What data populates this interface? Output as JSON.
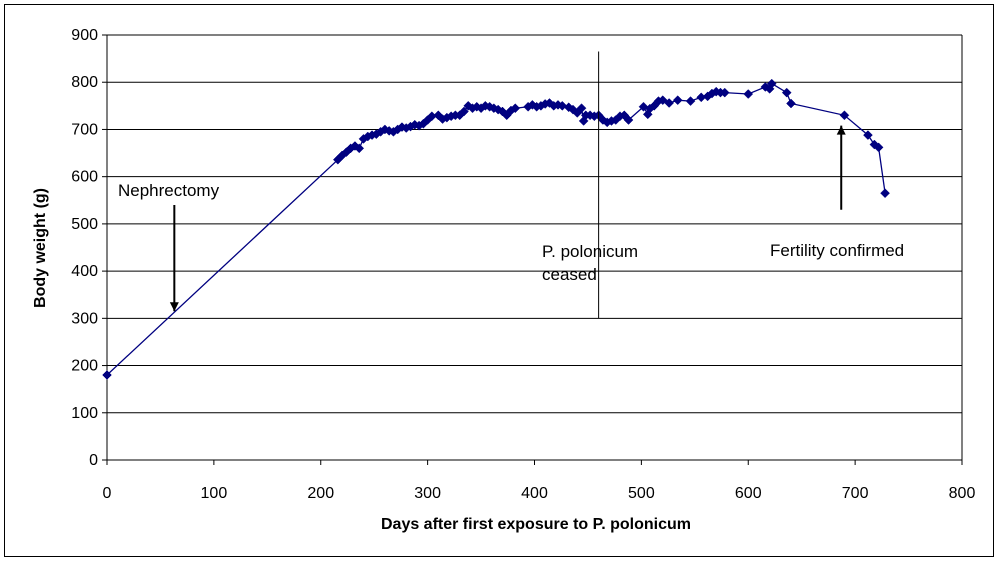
{
  "chart_data": {
    "type": "scatter",
    "title": "",
    "xlabel": "Days after first exposure to P. polonicum",
    "ylabel": "Body weight (g)",
    "xlim": [
      0,
      800
    ],
    "ylim": [
      0,
      900
    ],
    "xticks": [
      0,
      100,
      200,
      300,
      400,
      500,
      600,
      700,
      800
    ],
    "yticks": [
      0,
      100,
      200,
      300,
      400,
      500,
      600,
      700,
      800,
      900
    ],
    "grid": "horizontal",
    "legend": "none",
    "colors": {
      "series": "#000080",
      "grid": "#000000",
      "axis": "#000000"
    },
    "series": [
      {
        "marker": "diamond",
        "connected": true,
        "x": [
          0,
          216,
          220,
          224,
          228,
          232,
          236,
          240,
          244,
          248,
          252,
          256,
          260,
          264,
          268,
          272,
          276,
          280,
          284,
          288,
          292,
          296,
          300,
          304,
          310,
          314,
          318,
          322,
          326,
          330,
          334,
          338,
          342,
          346,
          350,
          354,
          358,
          362,
          366,
          370,
          374,
          378,
          382,
          394,
          398,
          402,
          406,
          410,
          414,
          418,
          422,
          426,
          432,
          436,
          440,
          444,
          446,
          448,
          452,
          456,
          460,
          464,
          468,
          472,
          476,
          480,
          484,
          488,
          502,
          506,
          508,
          512,
          516,
          520,
          526,
          534,
          546,
          556,
          562,
          566,
          570,
          574,
          578,
          600,
          616,
          620,
          622,
          636,
          640,
          690,
          712,
          718,
          722,
          728
        ],
        "y": [
          180,
          636,
          645,
          652,
          660,
          665,
          660,
          680,
          685,
          688,
          690,
          695,
          700,
          697,
          695,
          700,
          705,
          703,
          706,
          710,
          708,
          712,
          720,
          728,
          730,
          722,
          725,
          728,
          730,
          730,
          738,
          750,
          745,
          748,
          745,
          750,
          748,
          745,
          742,
          738,
          730,
          740,
          745,
          748,
          752,
          748,
          750,
          754,
          756,
          750,
          752,
          750,
          747,
          742,
          735,
          745,
          718,
          730,
          730,
          728,
          730,
          720,
          715,
          718,
          720,
          728,
          730,
          720,
          748,
          732,
          744,
          750,
          760,
          762,
          756,
          762,
          760,
          768,
          770,
          776,
          780,
          778,
          778,
          775,
          790,
          786,
          797,
          778,
          755,
          730,
          688,
          668,
          662,
          565
        ]
      }
    ],
    "annotations": [
      {
        "text": "Nephrectomy",
        "arrow_from": [
          63,
          540
        ],
        "arrow_to": [
          63,
          315
        ]
      },
      {
        "text_lines": [
          "P. polonicum",
          "ceased"
        ],
        "vline_x": 460,
        "vline_range": [
          300,
          865
        ]
      },
      {
        "text": "Fertility confirmed",
        "arrow_from": [
          687,
          530
        ],
        "arrow_to": [
          687,
          708
        ]
      }
    ]
  }
}
